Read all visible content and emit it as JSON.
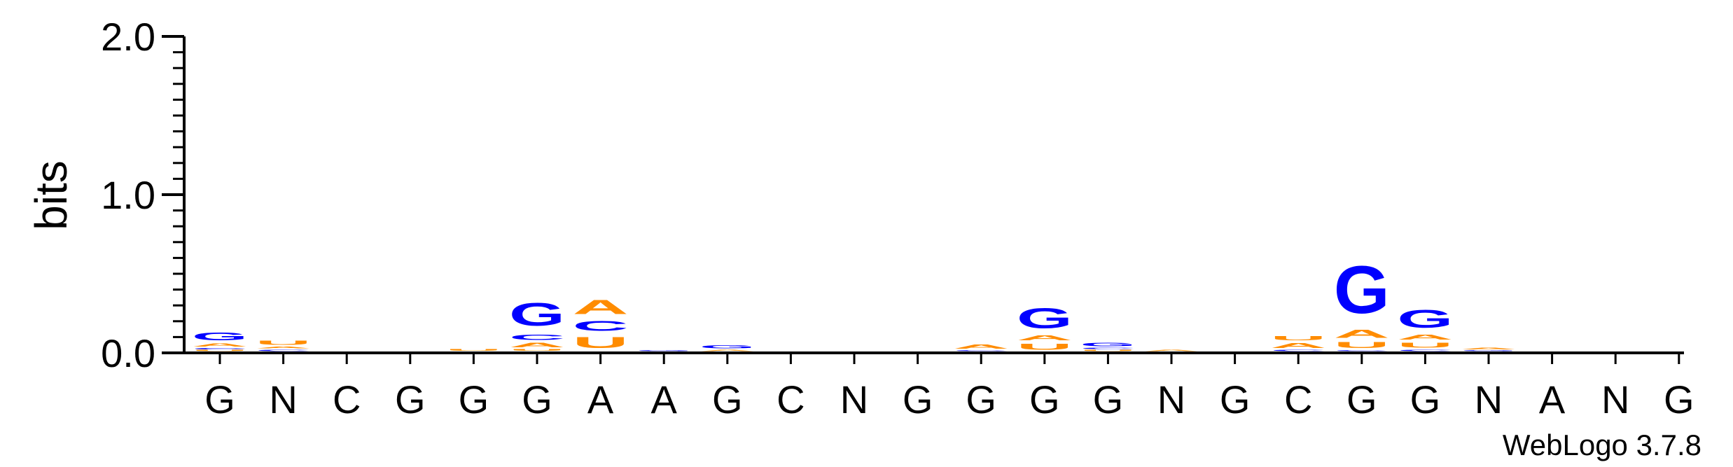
{
  "chart_data": {
    "type": "sequence-logo",
    "ylabel": "bits",
    "ylim": [
      0,
      2.0
    ],
    "yticks": [
      {
        "value": 0.0,
        "label": "0.0"
      },
      {
        "value": 1.0,
        "label": "1.0"
      },
      {
        "value": 2.0,
        "label": "2.0"
      }
    ],
    "categories": [
      "G",
      "N",
      "C",
      "G",
      "G",
      "G",
      "A",
      "A",
      "G",
      "C",
      "N",
      "G",
      "G",
      "G",
      "G",
      "N",
      "G",
      "C",
      "G",
      "G",
      "N",
      "A",
      "N",
      "G"
    ],
    "colors": {
      "G": "#0000ff",
      "C": "#0000ff",
      "A": "#ff8c00",
      "U": "#ff8c00"
    },
    "stacks": [
      [
        {
          "l": "U",
          "h": 0.012
        },
        {
          "l": "C",
          "h": 0.012
        },
        {
          "l": "A",
          "h": 0.03
        },
        {
          "l": "G",
          "h": 0.08
        }
      ],
      [
        {
          "l": "C",
          "h": 0.015
        },
        {
          "l": "A",
          "h": 0.02
        },
        {
          "l": "U",
          "h": 0.04
        }
      ],
      [],
      [],
      [
        {
          "l": "U",
          "h": 0.02
        }
      ],
      [
        {
          "l": "U",
          "h": 0.018
        },
        {
          "l": "A",
          "h": 0.045
        },
        {
          "l": "C",
          "h": 0.055
        },
        {
          "l": "G",
          "h": 0.23
        }
      ],
      [
        {
          "l": "U",
          "h": 0.11
        },
        {
          "l": "C",
          "h": 0.1
        },
        {
          "l": "A",
          "h": 0.14
        }
      ],
      [
        {
          "l": "G",
          "h": 0.01
        }
      ],
      [
        {
          "l": "A",
          "h": 0.015
        },
        {
          "l": "G",
          "h": 0.03
        }
      ],
      [],
      [],
      [],
      [
        {
          "l": "C",
          "h": 0.01
        },
        {
          "l": "A",
          "h": 0.04
        }
      ],
      [
        {
          "l": "U",
          "h": 0.06
        },
        {
          "l": "A",
          "h": 0.05
        },
        {
          "l": "G",
          "h": 0.2
        }
      ],
      [
        {
          "l": "U",
          "h": 0.012
        },
        {
          "l": "C",
          "h": 0.015
        },
        {
          "l": "G",
          "h": 0.035
        }
      ],
      [
        {
          "l": "A",
          "h": 0.012
        }
      ],
      [],
      [
        {
          "l": "C",
          "h": 0.012
        },
        {
          "l": "A",
          "h": 0.05
        },
        {
          "l": "U",
          "h": 0.04
        }
      ],
      [
        {
          "l": "C",
          "h": 0.01
        },
        {
          "l": "U",
          "h": 0.06
        },
        {
          "l": "A",
          "h": 0.08
        },
        {
          "l": "G",
          "h": 0.48
        }
      ],
      [
        {
          "l": "C",
          "h": 0.015
        },
        {
          "l": "U",
          "h": 0.05
        },
        {
          "l": "A",
          "h": 0.05
        },
        {
          "l": "G",
          "h": 0.18
        }
      ],
      [
        {
          "l": "G",
          "h": 0.01
        },
        {
          "l": "A",
          "h": 0.02
        }
      ],
      [],
      [],
      []
    ]
  },
  "credit": "WebLogo 3.7.8"
}
